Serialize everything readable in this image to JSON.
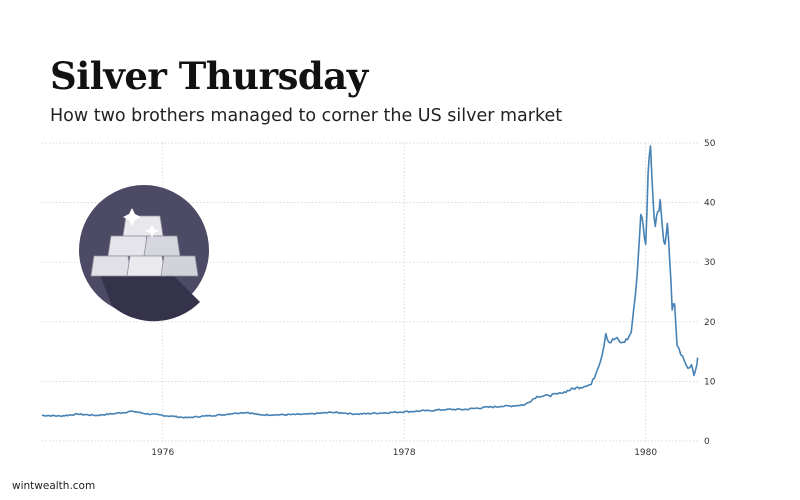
{
  "header": {
    "title": "Silver Thursday",
    "subtitle": "How two brothers managed to corner the US silver market"
  },
  "footer": {
    "credit": "wintwealth.com"
  },
  "icon": {
    "name": "silver-bars-icon",
    "background": "#4d4a66",
    "shadow": "#35324b"
  },
  "colors": {
    "line": "#4682b4",
    "grid": "#cccccc"
  },
  "chart_data": {
    "type": "line",
    "title": "Silver Thursday",
    "subtitle": "How two brothers managed to corner the US silver market",
    "xlabel": "",
    "ylabel": "",
    "xlim": [
      1975.0,
      1980.45
    ],
    "ylim": [
      0,
      50
    ],
    "x_ticks": [
      1976,
      1978,
      1980
    ],
    "y_ticks": [
      0,
      10,
      20,
      30,
      40,
      50
    ],
    "y_axis_side": "right",
    "grid": true,
    "legend": "none",
    "series": [
      {
        "name": "",
        "points": [
          [
            1975.0,
            4.3
          ],
          [
            1975.15,
            4.2
          ],
          [
            1975.3,
            4.5
          ],
          [
            1975.45,
            4.3
          ],
          [
            1975.6,
            4.6
          ],
          [
            1975.75,
            5.0
          ],
          [
            1975.85,
            4.6
          ],
          [
            1976.0,
            4.3
          ],
          [
            1976.1,
            4.1
          ],
          [
            1976.2,
            3.9
          ],
          [
            1976.35,
            4.2
          ],
          [
            1976.5,
            4.4
          ],
          [
            1976.6,
            4.7
          ],
          [
            1976.7,
            4.8
          ],
          [
            1976.8,
            4.4
          ],
          [
            1977.0,
            4.4
          ],
          [
            1977.2,
            4.5
          ],
          [
            1977.4,
            4.8
          ],
          [
            1977.5,
            4.7
          ],
          [
            1977.6,
            4.5
          ],
          [
            1977.8,
            4.7
          ],
          [
            1978.0,
            4.9
          ],
          [
            1978.2,
            5.1
          ],
          [
            1978.35,
            5.3
          ],
          [
            1978.5,
            5.3
          ],
          [
            1978.65,
            5.6
          ],
          [
            1978.8,
            5.8
          ],
          [
            1978.9,
            5.9
          ],
          [
            1979.0,
            6.1
          ],
          [
            1979.1,
            7.5
          ],
          [
            1979.2,
            7.6
          ],
          [
            1979.3,
            8.0
          ],
          [
            1979.4,
            8.8
          ],
          [
            1979.5,
            9.2
          ],
          [
            1979.55,
            9.5
          ],
          [
            1979.6,
            12.0
          ],
          [
            1979.64,
            14.5
          ],
          [
            1979.67,
            18.0
          ],
          [
            1979.7,
            16.5
          ],
          [
            1979.75,
            17.2
          ],
          [
            1979.8,
            16.5
          ],
          [
            1979.85,
            17.0
          ],
          [
            1979.88,
            18.2
          ],
          [
            1979.9,
            22.0
          ],
          [
            1979.93,
            28.0
          ],
          [
            1979.96,
            38.0
          ],
          [
            1979.98,
            36.0
          ],
          [
            1980.0,
            33.0
          ],
          [
            1980.02,
            45.0
          ],
          [
            1980.04,
            49.5
          ],
          [
            1980.06,
            41.0
          ],
          [
            1980.08,
            36.0
          ],
          [
            1980.1,
            38.5
          ],
          [
            1980.12,
            40.5
          ],
          [
            1980.14,
            35.5
          ],
          [
            1980.16,
            33.0
          ],
          [
            1980.18,
            36.5
          ],
          [
            1980.2,
            30.0
          ],
          [
            1980.22,
            22.0
          ],
          [
            1980.24,
            23.0
          ],
          [
            1980.26,
            16.0
          ],
          [
            1980.29,
            14.5
          ],
          [
            1980.32,
            13.5
          ],
          [
            1980.35,
            12.2
          ],
          [
            1980.38,
            12.8
          ],
          [
            1980.4,
            11.0
          ],
          [
            1980.42,
            12.5
          ],
          [
            1980.43,
            14.0
          ]
        ]
      }
    ]
  }
}
